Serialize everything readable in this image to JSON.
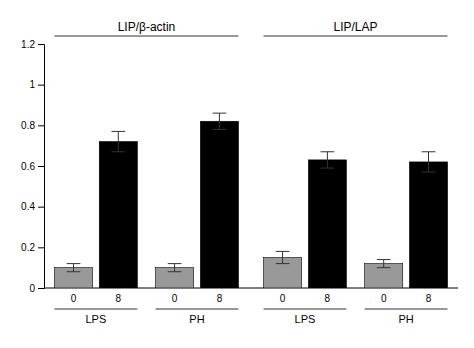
{
  "chart_data": {
    "type": "bar",
    "sections": [
      "LIP/β-actin",
      "LIP/LAP"
    ],
    "groups": [
      "LPS",
      "PH",
      "LPS",
      "PH"
    ],
    "categories": [
      "0",
      "8",
      "0",
      "8",
      "0",
      "8",
      "0",
      "8"
    ],
    "values": [
      0.1,
      0.72,
      0.1,
      0.82,
      0.15,
      0.63,
      0.12,
      0.62
    ],
    "errors": [
      0.02,
      0.05,
      0.02,
      0.04,
      0.03,
      0.04,
      0.02,
      0.05
    ],
    "colors": [
      "#999999",
      "black",
      "#999999",
      "black",
      "#999999",
      "black",
      "#999999",
      "black"
    ],
    "ylim": [
      0,
      1.2
    ],
    "yticks": [
      0,
      0.2,
      0.4,
      0.6,
      0.8,
      1,
      1.2
    ],
    "grid": false
  }
}
